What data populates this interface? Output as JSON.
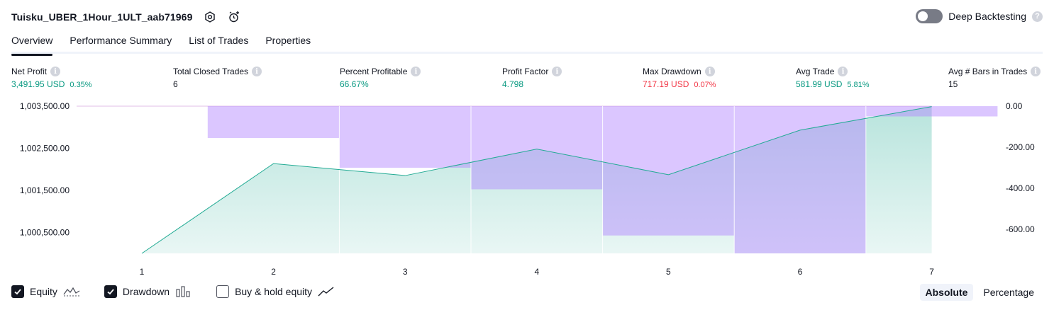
{
  "header": {
    "strategy_name": "Tuisku_UBER_1Hour_1ULT_aab71969",
    "deep_backtesting_label": "Deep Backtesting",
    "help_glyph": "?"
  },
  "tabs": [
    {
      "label": "Overview",
      "active": true
    },
    {
      "label": "Performance Summary",
      "active": false
    },
    {
      "label": "List of Trades",
      "active": false
    },
    {
      "label": "Properties",
      "active": false
    }
  ],
  "metrics": [
    {
      "label": "Net Profit",
      "value": "3,491.95 USD",
      "sub": "0.35%",
      "tone": "pos"
    },
    {
      "label": "Total Closed Trades",
      "value": "6",
      "sub": "",
      "tone": "neutral"
    },
    {
      "label": "Percent Profitable",
      "value": "66.67%",
      "sub": "",
      "tone": "pos"
    },
    {
      "label": "Profit Factor",
      "value": "4.798",
      "sub": "",
      "tone": "pos"
    },
    {
      "label": "Max Drawdown",
      "value": "717.19 USD",
      "sub": "0.07%",
      "tone": "neg"
    },
    {
      "label": "Avg Trade",
      "value": "581.99 USD",
      "sub": "5.81%",
      "tone": "pos"
    },
    {
      "label": "Avg # Bars in Trades",
      "value": "15",
      "sub": "",
      "tone": "neutral"
    }
  ],
  "info_glyph": "i",
  "chart_data": {
    "type": "area",
    "x": [
      1,
      2,
      3,
      4,
      5,
      6,
      7
    ],
    "x_tick_labels": [
      "1",
      "2",
      "3",
      "4",
      "5",
      "6",
      "7"
    ],
    "equity": [
      1000000.0,
      1002135.0,
      1001850.0,
      1002480.0,
      1001870.0,
      1002930.0,
      1003490.0
    ],
    "drawdown_bars": [
      {
        "from": 1.5,
        "to": 2.5,
        "value": -155
      },
      {
        "from": 2.5,
        "to": 3.5,
        "value": -300
      },
      {
        "from": 3.5,
        "to": 4.5,
        "value": -405
      },
      {
        "from": 4.5,
        "to": 5.5,
        "value": -630
      },
      {
        "from": 5.5,
        "to": 6.5,
        "value": -717.19
      },
      {
        "from": 6.5,
        "to": 7.5,
        "value": -50
      }
    ],
    "left_axis": {
      "range": [
        1000000,
        1003500
      ],
      "ticks": [
        1003500,
        1002500,
        1001500,
        1000500
      ],
      "tick_labels": [
        "1,003,500.00",
        "1,002,500.00",
        "1,001,500.00",
        "1,000,500.00"
      ]
    },
    "right_axis": {
      "range": [
        -717.19,
        0
      ],
      "ticks": [
        0,
        -200,
        -400,
        -600
      ],
      "tick_labels": [
        "0.00",
        "-200.00",
        "-400.00",
        "-600.00"
      ]
    },
    "colors": {
      "equity_line": "#22ab94",
      "equity_fill": "#22ab94",
      "drawdown_fill": "#b388ff",
      "baseline": "#e1bee7",
      "axis_text": "#131722"
    },
    "grid": false
  },
  "legend": {
    "items": [
      {
        "label": "Equity",
        "checked": true,
        "icon": "equity-line-icon"
      },
      {
        "label": "Drawdown",
        "checked": true,
        "icon": "drawdown-bars-icon"
      },
      {
        "label": "Buy & hold equity",
        "checked": false,
        "icon": "buy-hold-line-icon"
      }
    ]
  },
  "mode_switch": {
    "options": [
      {
        "label": "Absolute",
        "active": true
      },
      {
        "label": "Percentage",
        "active": false
      }
    ]
  }
}
